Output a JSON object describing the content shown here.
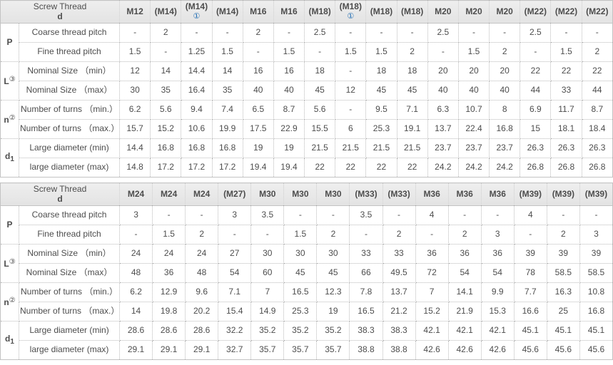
{
  "colors": {
    "header_bg": "#e8e8e8",
    "header_text_blue": "#1a6ab2",
    "body_text": "#4d4d4d",
    "border_solid": "#c3c3c3",
    "border_dotted": "#b9b9b9"
  },
  "tables": [
    {
      "corner_title": "Screw Thread",
      "corner_subtitle": "d",
      "columns": [
        {
          "label": "M12"
        },
        {
          "label": "(M14)"
        },
        {
          "label": "(M14)",
          "note": "①"
        },
        {
          "label": "(M14)"
        },
        {
          "label": "M16"
        },
        {
          "label": "M16"
        },
        {
          "label": "(M18)"
        },
        {
          "label": "(M18)",
          "note": "①"
        },
        {
          "label": "(M18)"
        },
        {
          "label": "(M18)"
        },
        {
          "label": "M20"
        },
        {
          "label": "M20"
        },
        {
          "label": "M20"
        },
        {
          "label": "(M22)"
        },
        {
          "label": "(M22)"
        },
        {
          "label": "(M22)"
        }
      ],
      "row_groups": [
        {
          "symbol": "P",
          "rows": [
            {
              "label": "Coarse thread pitch",
              "values": [
                "-",
                "2",
                "-",
                "-",
                "2",
                "-",
                "2.5",
                "-",
                "-",
                "-",
                "2.5",
                "-",
                "-",
                "2.5",
                "-",
                "-"
              ]
            },
            {
              "label": "Fine thread pitch",
              "values": [
                "1.5",
                "-",
                "1.25",
                "1.5",
                "-",
                "1.5",
                "-",
                "1.5",
                "1.5",
                "2",
                "-",
                "1.5",
                "2",
                "-",
                "1.5",
                "2"
              ]
            }
          ]
        },
        {
          "symbol": "L",
          "sup": "③",
          "rows": [
            {
              "label": "Nominal Size （min）",
              "values": [
                "12",
                "14",
                "14.4",
                "14",
                "16",
                "16",
                "18",
                "-",
                "18",
                "18",
                "20",
                "20",
                "20",
                "22",
                "22",
                "22"
              ]
            },
            {
              "label": "Nominal Size （max）",
              "values": [
                "30",
                "35",
                "16.4",
                "35",
                "40",
                "40",
                "45",
                "12",
                "45",
                "45",
                "40",
                "40",
                "40",
                "44",
                "33",
                "44"
              ]
            }
          ]
        },
        {
          "symbol": "n",
          "sup": "②",
          "rows": [
            {
              "label": "Number of turns （min.）",
              "values": [
                "6.2",
                "5.6",
                "9.4",
                "7.4",
                "6.5",
                "8.7",
                "5.6",
                "-",
                "9.5",
                "7.1",
                "6.3",
                "10.7",
                "8",
                "6.9",
                "11.7",
                "8.7"
              ]
            },
            {
              "label": "Number of turns （max.）",
              "values": [
                "15.7",
                "15.2",
                "10.6",
                "19.9",
                "17.5",
                "22.9",
                "15.5",
                "6",
                "25.3",
                "19.1",
                "13.7",
                "22.4",
                "16.8",
                "15",
                "18.1",
                "18.4"
              ]
            }
          ]
        },
        {
          "symbol": "d",
          "sub": "1",
          "rows": [
            {
              "label": "Large diameter (min)",
              "values": [
                "14.4",
                "16.8",
                "16.8",
                "16.8",
                "19",
                "19",
                "21.5",
                "21.5",
                "21.5",
                "21.5",
                "23.7",
                "23.7",
                "23.7",
                "26.3",
                "26.3",
                "26.3"
              ]
            },
            {
              "label": "large diameter (max)",
              "values": [
                "14.8",
                "17.2",
                "17.2",
                "17.2",
                "19.4",
                "19.4",
                "22",
                "22",
                "22",
                "22",
                "24.2",
                "24.2",
                "24.2",
                "26.8",
                "26.8",
                "26.8"
              ]
            }
          ]
        }
      ]
    },
    {
      "corner_title": "Screw Thread",
      "corner_subtitle": "d",
      "columns": [
        {
          "label": "M24"
        },
        {
          "label": "M24"
        },
        {
          "label": "M24"
        },
        {
          "label": "(M27)"
        },
        {
          "label": "M30"
        },
        {
          "label": "M30"
        },
        {
          "label": "M30"
        },
        {
          "label": "(M33)"
        },
        {
          "label": "(M33)"
        },
        {
          "label": "M36"
        },
        {
          "label": "M36"
        },
        {
          "label": "M36"
        },
        {
          "label": "(M39)"
        },
        {
          "label": "(M39)"
        },
        {
          "label": "(M39)"
        }
      ],
      "row_groups": [
        {
          "symbol": "P",
          "rows": [
            {
              "label": "Coarse thread pitch",
              "values": [
                "3",
                "-",
                "-",
                "3",
                "3.5",
                "-",
                "-",
                "3.5",
                "-",
                "4",
                "-",
                "-",
                "4",
                "-",
                "-"
              ]
            },
            {
              "label": "Fine thread pitch",
              "values": [
                "-",
                "1.5",
                "2",
                "-",
                "-",
                "1.5",
                "2",
                "-",
                "2",
                "-",
                "2",
                "3",
                "-",
                "2",
                "3"
              ]
            }
          ]
        },
        {
          "symbol": "L",
          "sup": "③",
          "rows": [
            {
              "label": "Nominal Size （min）",
              "values": [
                "24",
                "24",
                "24",
                "27",
                "30",
                "30",
                "30",
                "33",
                "33",
                "36",
                "36",
                "36",
                "39",
                "39",
                "39"
              ]
            },
            {
              "label": "Nominal Size （max）",
              "values": [
                "48",
                "36",
                "48",
                "54",
                "60",
                "45",
                "45",
                "66",
                "49.5",
                "72",
                "54",
                "54",
                "78",
                "58.5",
                "58.5"
              ]
            }
          ]
        },
        {
          "symbol": "n",
          "sup": "②",
          "rows": [
            {
              "label": "Number of turns （min.）",
              "values": [
                "6.2",
                "12.9",
                "9.6",
                "7.1",
                "7",
                "16.5",
                "12.3",
                "7.8",
                "13.7",
                "7",
                "14.1",
                "9.9",
                "7.7",
                "16.3",
                "10.8"
              ]
            },
            {
              "label": "Number of turns （max.）",
              "values": [
                "14",
                "19.8",
                "20.2",
                "15.4",
                "14.9",
                "25.3",
                "19",
                "16.5",
                "21.2",
                "15.2",
                "21.9",
                "15.3",
                "16.6",
                "25",
                "16.8"
              ]
            }
          ]
        },
        {
          "symbol": "d",
          "sub": "1",
          "rows": [
            {
              "label": "Large diameter (min)",
              "values": [
                "28.6",
                "28.6",
                "28.6",
                "32.2",
                "35.2",
                "35.2",
                "35.2",
                "38.3",
                "38.3",
                "42.1",
                "42.1",
                "42.1",
                "45.1",
                "45.1",
                "45.1"
              ]
            },
            {
              "label": "large diameter (max)",
              "values": [
                "29.1",
                "29.1",
                "29.1",
                "32.7",
                "35.7",
                "35.7",
                "35.7",
                "38.8",
                "38.8",
                "42.6",
                "42.6",
                "42.6",
                "45.6",
                "45.6",
                "45.6"
              ]
            }
          ]
        }
      ]
    }
  ]
}
